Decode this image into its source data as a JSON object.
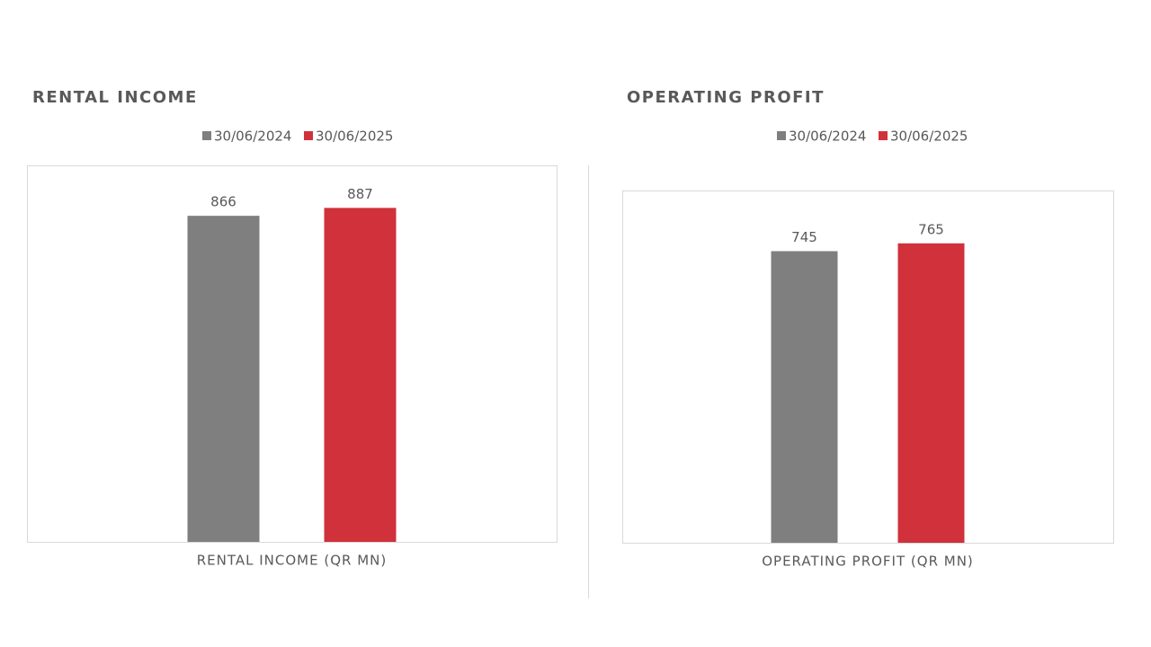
{
  "chart_data": [
    {
      "type": "bar",
      "title": "RENTAL INCOME",
      "categories": [
        "RENTAL INCOME (QR MN)"
      ],
      "series": [
        {
          "name": "30/06/2024",
          "color": "#7f7f7f",
          "values": [
            866
          ]
        },
        {
          "name": "30/06/2025",
          "color": "#d0313a",
          "values": [
            887
          ]
        }
      ],
      "ylim": [
        0,
        1000
      ]
    },
    {
      "type": "bar",
      "title": "OPERATING PROFIT",
      "categories": [
        "OPERATING PROFIT (QR MN)"
      ],
      "series": [
        {
          "name": "30/06/2024",
          "color": "#7f7f7f",
          "values": [
            745
          ]
        },
        {
          "name": "30/06/2025",
          "color": "#d0313a",
          "values": [
            765
          ]
        }
      ],
      "ylim": [
        0,
        900
      ]
    }
  ]
}
